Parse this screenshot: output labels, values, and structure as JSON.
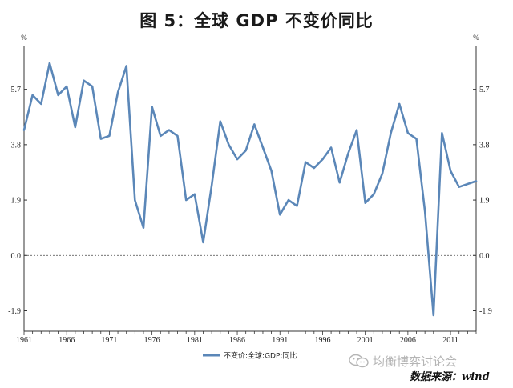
{
  "chart_data": {
    "type": "line",
    "title": "图 5：全球 GDP 不变价同比",
    "ylabel_left": "%",
    "ylabel_right": "%",
    "ylim": [
      -2.6,
      7.2
    ],
    "yticks": [
      "5.7",
      "3.8",
      "1.9",
      "0.0",
      "-1.9"
    ],
    "ytick_values": [
      5.7,
      3.8,
      1.9,
      0.0,
      -1.9
    ],
    "xlim": [
      1961,
      2014
    ],
    "xticks": [
      "1961",
      "1966",
      "1971",
      "1976",
      "1981",
      "1986",
      "1991",
      "1996",
      "2001",
      "2006",
      "2011"
    ],
    "xtick_values": [
      1961,
      1966,
      1971,
      1976,
      1981,
      1986,
      1991,
      1996,
      2001,
      2006,
      2011
    ],
    "zero_line": true,
    "legend": "不变价:全球:GDP:同比",
    "series": [
      {
        "name": "不变价:全球:GDP:同比",
        "color": "#5b87b8",
        "x": [
          1961,
          1962,
          1963,
          1964,
          1965,
          1966,
          1967,
          1968,
          1969,
          1970,
          1971,
          1972,
          1973,
          1974,
          1975,
          1976,
          1977,
          1978,
          1979,
          1980,
          1981,
          1982,
          1983,
          1984,
          1985,
          1986,
          1987,
          1988,
          1989,
          1990,
          1991,
          1992,
          1993,
          1994,
          1995,
          1996,
          1997,
          1998,
          1999,
          2000,
          2001,
          2002,
          2003,
          2004,
          2005,
          2006,
          2007,
          2008,
          2009,
          2010,
          2011,
          2012,
          2013,
          2014
        ],
        "y": [
          4.3,
          5.5,
          5.2,
          6.6,
          5.5,
          5.8,
          4.4,
          6.0,
          5.8,
          4.0,
          4.1,
          5.6,
          6.5,
          1.9,
          0.95,
          5.1,
          4.1,
          4.3,
          4.1,
          1.9,
          2.1,
          0.45,
          2.4,
          4.6,
          3.8,
          3.3,
          3.6,
          4.5,
          3.7,
          2.9,
          1.4,
          1.9,
          1.7,
          3.2,
          3.0,
          3.3,
          3.7,
          2.5,
          3.5,
          4.3,
          1.8,
          2.1,
          2.8,
          4.2,
          5.2,
          4.2,
          4.0,
          1.5,
          -2.05,
          4.2,
          2.9,
          2.35,
          2.45,
          2.55
        ]
      }
    ]
  },
  "watermark": "均衡博弈讨论会",
  "source": "数据来源：wind"
}
